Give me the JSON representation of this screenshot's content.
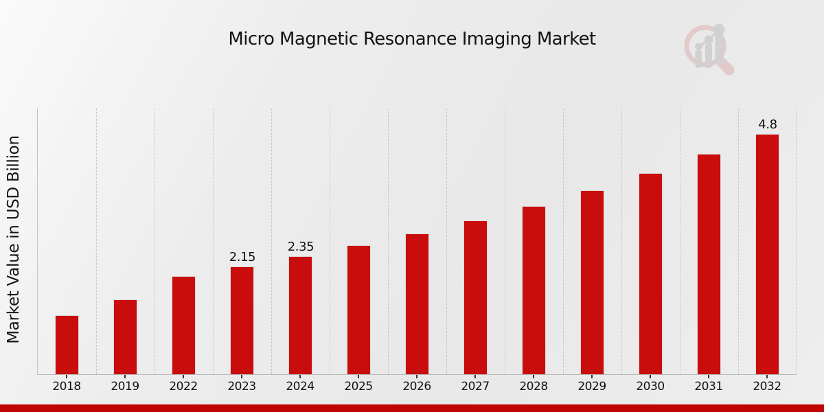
{
  "page": {
    "title": "Micro Magnetic Resonance Imaging Market"
  },
  "chart_data": {
    "type": "bar",
    "title": "Micro Magnetic Resonance Imaging Market",
    "xlabel": "",
    "ylabel": "Market Value in USD Billion",
    "categories": [
      "2018",
      "2019",
      "2022",
      "2023",
      "2024",
      "2025",
      "2026",
      "2027",
      "2028",
      "2029",
      "2030",
      "2031",
      "2032"
    ],
    "values": [
      1.18,
      1.49,
      1.96,
      2.15,
      2.35,
      2.57,
      2.81,
      3.07,
      3.35,
      3.67,
      4.01,
      4.39,
      4.8
    ],
    "bar_labels": [
      "",
      "",
      "",
      "2.15",
      "2.35",
      "",
      "",
      "",
      "",
      "",
      "",
      "",
      "4.8"
    ],
    "ylim": [
      0,
      5.3
    ],
    "grid": "vertical-dashed",
    "legend_position": "none",
    "bar_color": "#c90c0c",
    "bar_edge_color": "#dcdcdc"
  },
  "branding": {
    "logo": "magnifier-bar-chart-logo",
    "ring_color": "#d99c9c",
    "glyph_color": "#bcbcbc",
    "footer_bar_color": "#c00303"
  }
}
